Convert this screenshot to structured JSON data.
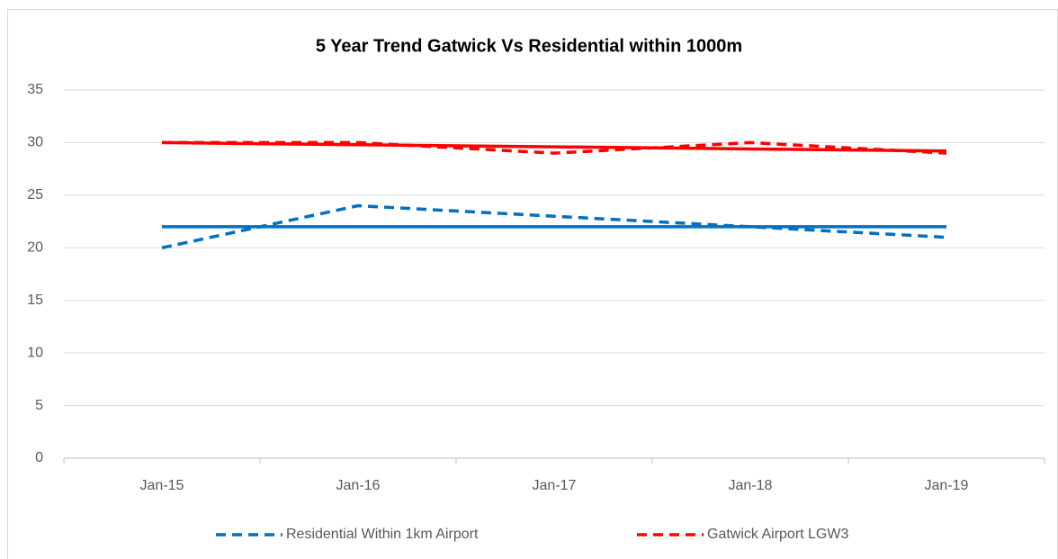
{
  "chart_data": {
    "type": "line",
    "title": "5 Year Trend Gatwick Vs Residential within 1000m",
    "categories": [
      "Jan-15",
      "Jan-16",
      "Jan-17",
      "Jan-18",
      "Jan-19"
    ],
    "series": [
      {
        "name": "Residential Within 1km Airport",
        "color": "#0070c0",
        "line_style": "dashed",
        "values": [
          20,
          24,
          23,
          22,
          21
        ],
        "trend_values": [
          22,
          22,
          22,
          22,
          22
        ]
      },
      {
        "name": "Gatwick Airport LGW3",
        "color": "#ff0000",
        "line_style": "dashed",
        "values": [
          30,
          30,
          29,
          30,
          29
        ],
        "trend_values": [
          30,
          29.8,
          29.6,
          29.4,
          29.2
        ]
      }
    ],
    "ylim": [
      0,
      35
    ],
    "yticks": [
      0,
      5,
      10,
      15,
      20,
      25,
      30,
      35
    ],
    "grid": true,
    "legend": "bottom"
  }
}
